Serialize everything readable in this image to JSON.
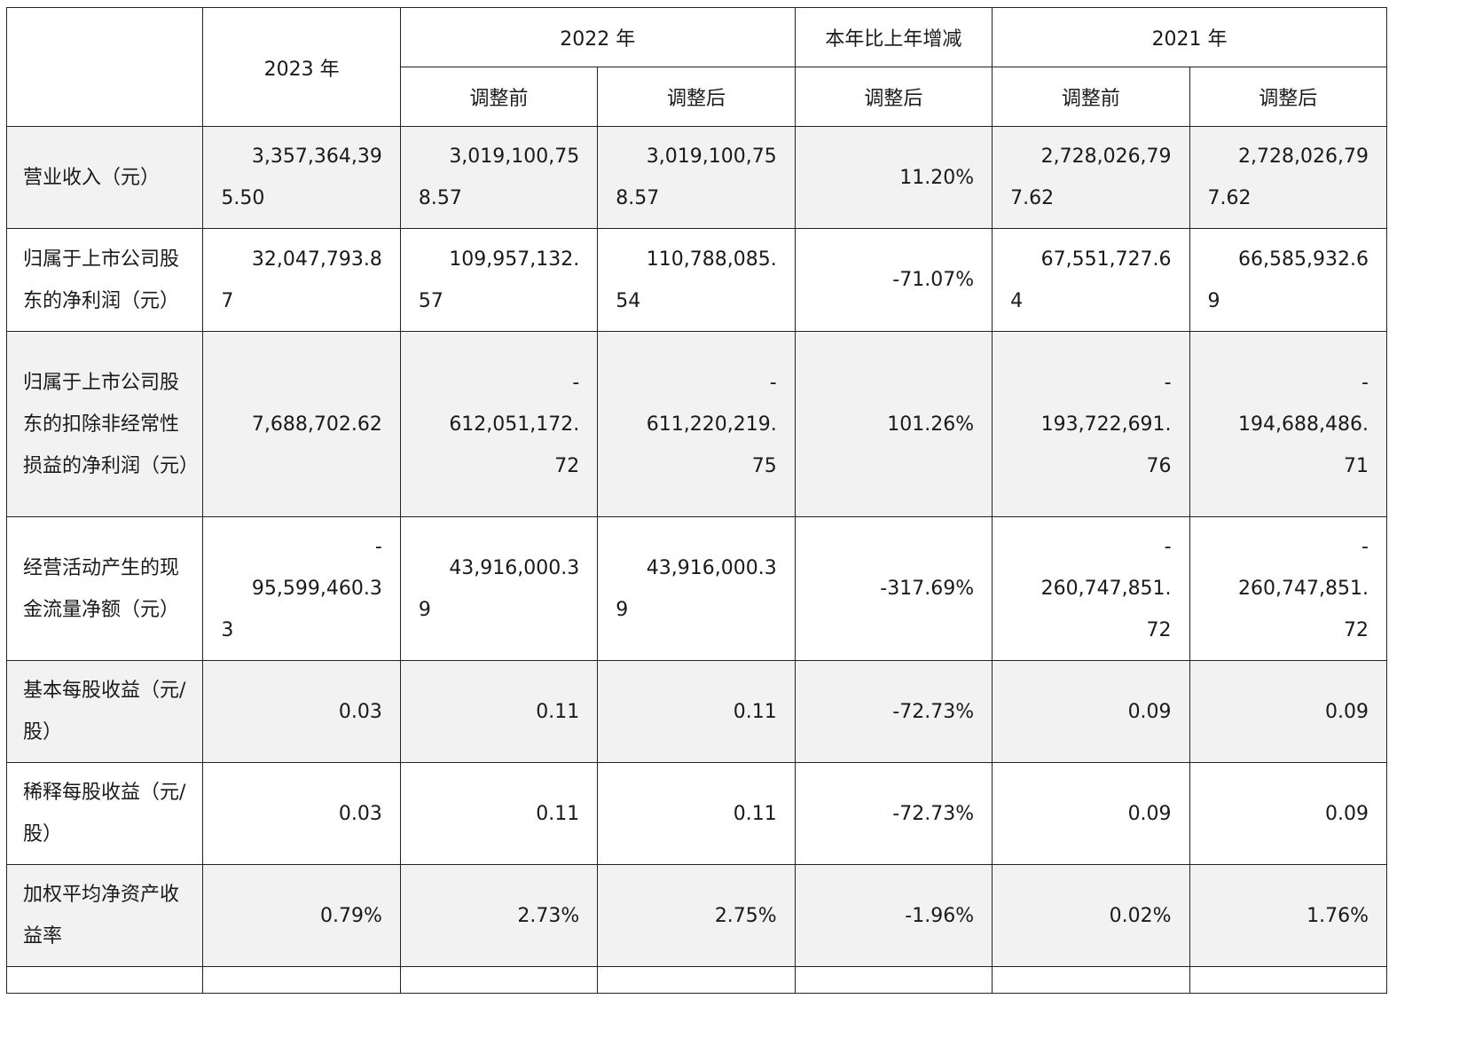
{
  "header": {
    "y2023": "2023 年",
    "y2022": "2022 年",
    "yoy": "本年比上年增减",
    "y2021": "2021 年",
    "before_adj": "调整前",
    "after_adj": "调整后"
  },
  "rows": [
    {
      "label": "营业收入（元）",
      "c2023": [
        "3,357,364,39",
        "5.50"
      ],
      "c2022_before": [
        "3,019,100,75",
        "8.57"
      ],
      "c2022_after": [
        "3,019,100,75",
        "8.57"
      ],
      "yoy": "11.20%",
      "c2021_before": [
        "2,728,026,79",
        "7.62"
      ],
      "c2021_after": [
        "2,728,026,79",
        "7.62"
      ]
    },
    {
      "label": "归属于上市公司股东的净利润（元）",
      "c2023": [
        "32,047,793.8",
        "7"
      ],
      "c2022_before": [
        "109,957,132.",
        "57"
      ],
      "c2022_after": [
        "110,788,085.",
        "54"
      ],
      "yoy": "-71.07%",
      "c2021_before": [
        "67,551,727.6",
        "4"
      ],
      "c2021_after": [
        "66,585,932.6",
        "9"
      ]
    },
    {
      "label": "归属于上市公司股东的扣除非经常性损益的净利润（元）",
      "c2023": "7,688,702.62",
      "c2022_before": [
        "-",
        "612,051,172.",
        "72"
      ],
      "c2022_after": [
        "-",
        "611,220,219.",
        "75"
      ],
      "yoy": "101.26%",
      "c2021_before": [
        "-",
        "193,722,691.",
        "76"
      ],
      "c2021_after": [
        "-",
        "194,688,486.",
        "71"
      ]
    },
    {
      "label": "经营活动产生的现金流量净额（元）",
      "c2023": [
        "-",
        "95,599,460.3",
        "3"
      ],
      "c2022_before": [
        "43,916,000.3",
        "9"
      ],
      "c2022_after": [
        "43,916,000.3",
        "9"
      ],
      "yoy": "-317.69%",
      "c2021_before": [
        "-",
        "260,747,851.",
        "72"
      ],
      "c2021_after": [
        "-",
        "260,747,851.",
        "72"
      ]
    },
    {
      "label": "基本每股收益（元/股）",
      "c2023": "0.03",
      "c2022_before": "0.11",
      "c2022_after": "0.11",
      "yoy": "-72.73%",
      "c2021_before": "0.09",
      "c2021_after": "0.09"
    },
    {
      "label": "稀释每股收益（元/股）",
      "c2023": "0.03",
      "c2022_before": "0.11",
      "c2022_after": "0.11",
      "yoy": "-72.73%",
      "c2021_before": "0.09",
      "c2021_after": "0.09"
    },
    {
      "label": "加权平均净资产收益率",
      "c2023": "0.79%",
      "c2022_before": "2.73%",
      "c2022_after": "2.75%",
      "yoy": "-1.96%",
      "c2021_before": "0.02%",
      "c2021_after": "1.76%"
    }
  ]
}
